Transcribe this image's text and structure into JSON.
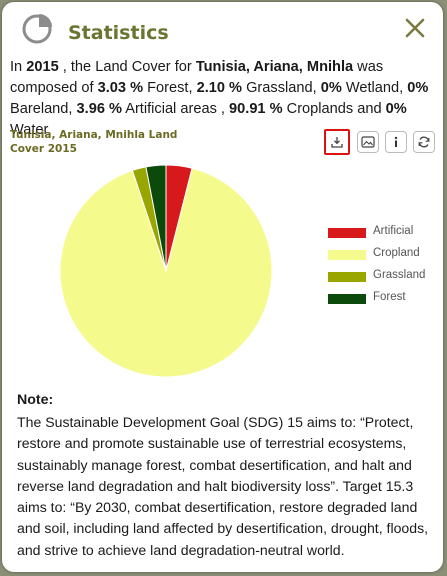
{
  "header": {
    "title": "Statistics",
    "icon": "pie-chart-icon",
    "close_icon": "close-icon"
  },
  "summary": {
    "p1": "In ",
    "year": "2015",
    "p2": " , the Land Cover for ",
    "location": "Tunisia, Ariana, Mnihla",
    "p3": " was composed of ",
    "forest_pct": "3.03 %",
    "p4": " Forest, ",
    "grassland_pct": "2.10 %",
    "p5": " Grassland, ",
    "wetland_pct": "0%",
    "p6": " Wetland, ",
    "bareland_pct": "0%",
    "p7": " Bareland, ",
    "artificial_pct": "3.96 %",
    "p8": " Artificial areas , ",
    "cropland_pct": "90.91 %",
    "p9": " Croplands and ",
    "water_pct": "0%",
    "p10": " Water."
  },
  "toolbar": {
    "icons": [
      "download-icon",
      "image-icon",
      "info-icon",
      "refresh-icon"
    ]
  },
  "chart_data": {
    "type": "pie",
    "title": "Tunisia, Ariana, Mnihla Land Cover 2015",
    "slices": [
      {
        "name": "Artificial",
        "value": 3.96,
        "color": "#d7191c"
      },
      {
        "name": "Cropland",
        "value": 90.91,
        "color": "#f4fa8c"
      },
      {
        "name": "Grassland",
        "value": 2.1,
        "color": "#9aa600"
      },
      {
        "name": "Forest",
        "value": 3.03,
        "color": "#0c4a0c"
      }
    ],
    "legend_position": "right"
  },
  "note": {
    "title": "Note:",
    "text": "The Sustainable Development Goal (SDG) 15 aims to: “Protect, restore and promote sustainable use of terrestrial ecosystems, sustainably manage forest, combat desertification, and halt and reverse land degradation and halt biodiversity loss”. Target 15.3 aims to: “By 2030, combat desertification, restore degraded land and soil, including land affected by desertification, drought, floods, and strive to achieve land degradation-neutral world."
  },
  "colors": {
    "accent": "#6b7530",
    "highlight": "#d11111"
  }
}
